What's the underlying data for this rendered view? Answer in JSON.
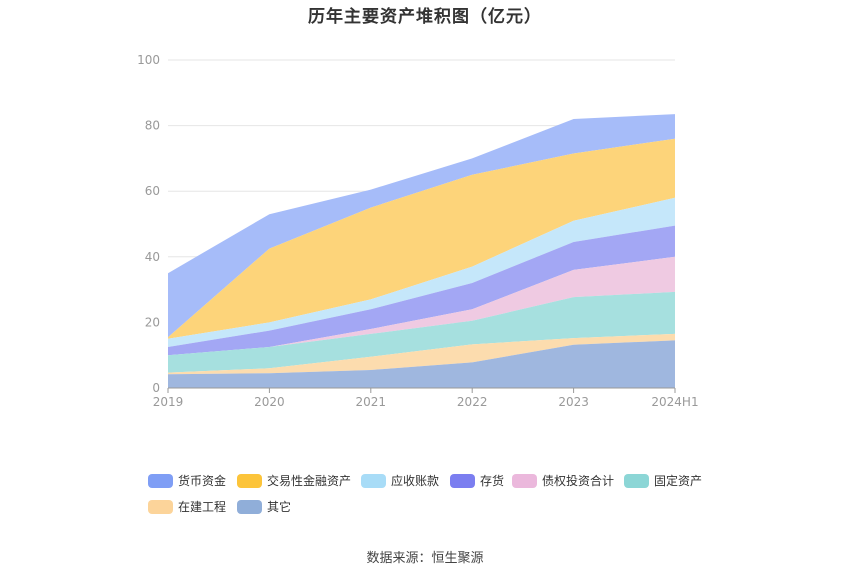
{
  "chart_data": {
    "type": "area",
    "stacked": true,
    "title": "历年主要资产堆积图（亿元）",
    "categories": [
      "2019",
      "2020",
      "2021",
      "2022",
      "2023",
      "2024H1"
    ],
    "ylim": [
      0,
      100
    ],
    "yticks": [
      "0",
      "20",
      "40",
      "60",
      "80",
      "100"
    ],
    "grid": true,
    "legend_position": "bottom",
    "series": [
      {
        "name": "其它",
        "color": "#9fb7df",
        "values": [
          4.2,
          4.5,
          5.5,
          7.8,
          13.2,
          14.5
        ]
      },
      {
        "name": "在建工程",
        "color": "#fcdcae",
        "values": [
          0.5,
          1.5,
          4.0,
          5.5,
          2.0,
          2.0
        ]
      },
      {
        "name": "固定资产",
        "color": "#a6e0df",
        "values": [
          5.3,
          6.5,
          7.0,
          7.2,
          12.5,
          12.8
        ]
      },
      {
        "name": "债权投资合计",
        "color": "#efcae2",
        "values": [
          0.0,
          0.0,
          1.5,
          3.5,
          8.3,
          10.7
        ]
      },
      {
        "name": "存货",
        "color": "#a3a7f4",
        "values": [
          2.5,
          5.0,
          6.0,
          8.0,
          8.5,
          9.5
        ]
      },
      {
        "name": "应收账款",
        "color": "#c5e7fa",
        "values": [
          2.5,
          2.5,
          3.0,
          5.0,
          6.5,
          8.5
        ]
      },
      {
        "name": "交易性金融资产",
        "color": "#fdd47a",
        "values": [
          0.5,
          22.5,
          28.0,
          28.0,
          20.5,
          18.0
        ]
      },
      {
        "name": "货币资金",
        "color": "#a6bcf9",
        "values": [
          19.5,
          10.5,
          5.5,
          5.0,
          10.5,
          7.5
        ]
      }
    ]
  },
  "legend": {
    "items": [
      {
        "label": "货币资金",
        "color": "#7f9ef5"
      },
      {
        "label": "交易性金融资产",
        "color": "#fcc43a"
      },
      {
        "label": "应收账款",
        "color": "#a8dcf7"
      },
      {
        "label": "存货",
        "color": "#7b7ef0"
      },
      {
        "label": "债权投资合计",
        "color": "#ebb8dc"
      },
      {
        "label": "固定资产",
        "color": "#8cd6d6"
      },
      {
        "label": "在建工程",
        "color": "#fcd49a"
      },
      {
        "label": "其它",
        "color": "#90aed9"
      }
    ]
  },
  "source": "数据来源：恒生聚源"
}
